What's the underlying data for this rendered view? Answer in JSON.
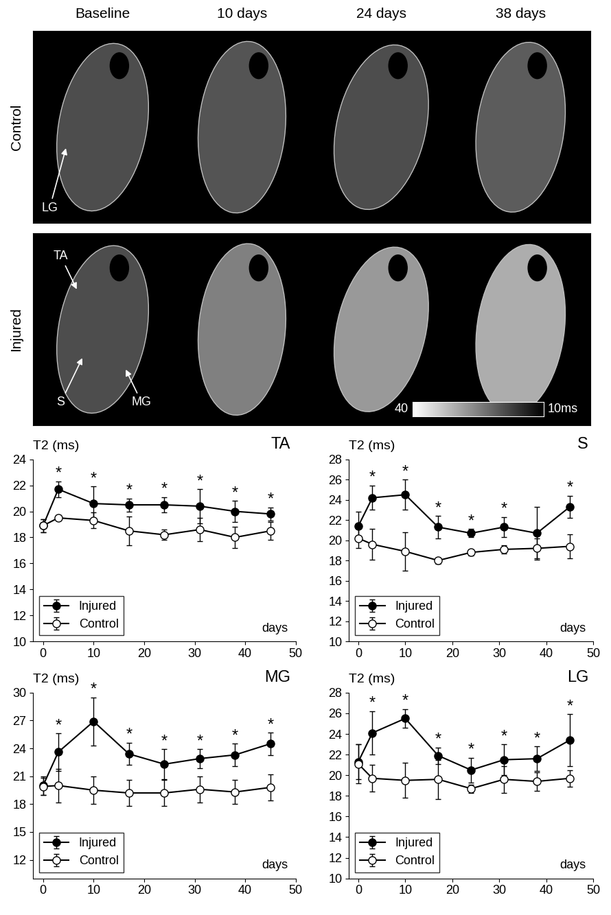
{
  "images": {
    "columns": [
      "Baseline",
      "10 days",
      "24 days",
      "38 days"
    ],
    "rows": [
      "Control",
      "Injured"
    ],
    "labels": {
      "Control": [
        "LG"
      ],
      "Injured": [
        "TA",
        "S",
        "MG"
      ]
    },
    "colorbar": {
      "lim": [
        40,
        10
      ],
      "ticks": [
        40,
        {
          "value": 10,
          "label": "10ms"
        }
      ]
    }
  },
  "chart_data": [
    {
      "type": "line",
      "title": "TA",
      "y_label": "T2 (ms)",
      "x_label": "days",
      "xlim": [
        -2,
        50
      ],
      "xticks": [
        0,
        10,
        20,
        30,
        40,
        50
      ],
      "ylim": [
        10,
        24
      ],
      "yticks": [
        10,
        12,
        14,
        16,
        18,
        20,
        22,
        24
      ],
      "legend": "lower left",
      "annotation": "*",
      "x": [
        0,
        3,
        10,
        17,
        24,
        31,
        38,
        45
      ],
      "series": [
        {
          "name": "Injured",
          "color": "#000000",
          "marker": "o",
          "values": [
            18.9,
            21.7,
            20.6,
            20.5,
            20.5,
            20.4,
            20.0,
            19.8
          ],
          "error": [
            0.5,
            0.6,
            1.3,
            0.5,
            0.6,
            1.3,
            0.8,
            0.5
          ],
          "significant": [
            false,
            true,
            true,
            true,
            true,
            true,
            true,
            true
          ]
        },
        {
          "name": "Control",
          "color": "#ffffff",
          "marker": "o",
          "values": [
            18.9,
            19.5,
            19.3,
            18.5,
            18.2,
            18.6,
            18.0,
            18.5
          ],
          "error": [
            0.5,
            0.2,
            0.6,
            1.1,
            0.4,
            0.9,
            0.8,
            0.7
          ]
        }
      ]
    },
    {
      "type": "line",
      "title": "S",
      "y_label": "T2 (ms)",
      "x_label": "days",
      "xlim": [
        -2,
        50
      ],
      "xticks": [
        0,
        10,
        20,
        30,
        40,
        50
      ],
      "ylim": [
        10,
        28
      ],
      "yticks": [
        10,
        12,
        14,
        16,
        18,
        20,
        22,
        24,
        26,
        28
      ],
      "legend": "lower left",
      "annotation": "*",
      "x": [
        0,
        3,
        10,
        17,
        24,
        31,
        38,
        45
      ],
      "series": [
        {
          "name": "Injured",
          "color": "#000000",
          "marker": "o",
          "values": [
            21.4,
            24.2,
            24.5,
            21.3,
            20.7,
            21.3,
            20.7,
            23.3
          ],
          "error": [
            1.4,
            1.2,
            1.5,
            1.1,
            0.4,
            1.0,
            2.6,
            1.1
          ],
          "significant": [
            false,
            true,
            true,
            true,
            true,
            true,
            false,
            true
          ]
        },
        {
          "name": "Control",
          "color": "#ffffff",
          "marker": "o",
          "values": [
            20.2,
            19.6,
            18.9,
            18.0,
            18.8,
            19.1,
            19.2,
            19.4
          ],
          "error": [
            1.0,
            1.5,
            1.9,
            0.3,
            0.3,
            0.4,
            1.0,
            1.2
          ]
        }
      ]
    },
    {
      "type": "line",
      "title": "MG",
      "y_label": "T2 (ms)",
      "x_label": "days",
      "xlim": [
        -2,
        50
      ],
      "xticks": [
        0,
        10,
        20,
        30,
        40,
        50
      ],
      "ylim": [
        10,
        30
      ],
      "yticks": [
        12,
        15,
        18,
        21,
        24,
        27,
        30
      ],
      "legend": "lower left",
      "annotation": "*",
      "x": [
        0,
        3,
        10,
        17,
        24,
        31,
        38,
        45
      ],
      "series": [
        {
          "name": "Injured",
          "color": "#000000",
          "marker": "o",
          "values": [
            20.0,
            23.6,
            26.9,
            23.4,
            22.3,
            22.9,
            23.3,
            24.5
          ],
          "error": [
            1.0,
            2.0,
            2.6,
            1.2,
            1.6,
            1.0,
            1.2,
            1.2
          ],
          "significant": [
            false,
            true,
            true,
            true,
            true,
            true,
            true,
            true
          ]
        },
        {
          "name": "Control",
          "color": "#ffffff",
          "marker": "o",
          "values": [
            19.9,
            20.0,
            19.5,
            19.2,
            19.2,
            19.6,
            19.3,
            19.8
          ],
          "error": [
            0.9,
            1.8,
            1.5,
            1.4,
            1.4,
            1.4,
            1.3,
            1.4
          ]
        }
      ]
    },
    {
      "type": "line",
      "title": "LG",
      "y_label": "T2 (ms)",
      "x_label": "days",
      "xlim": [
        -2,
        50
      ],
      "xticks": [
        0,
        10,
        20,
        30,
        40,
        50
      ],
      "ylim": [
        10,
        28
      ],
      "yticks": [
        10,
        12,
        14,
        16,
        18,
        20,
        22,
        24,
        26,
        28
      ],
      "legend": "lower left",
      "annotation": "*",
      "x": [
        0,
        3,
        10,
        17,
        24,
        31,
        38,
        45
      ],
      "series": [
        {
          "name": "Injured",
          "color": "#000000",
          "marker": "o",
          "values": [
            21.3,
            24.1,
            25.5,
            21.9,
            20.5,
            21.5,
            21.6,
            23.4
          ],
          "error": [
            1.7,
            2.1,
            0.9,
            0.8,
            1.2,
            1.5,
            1.2,
            2.5
          ],
          "significant": [
            false,
            true,
            true,
            true,
            true,
            true,
            true,
            true
          ]
        },
        {
          "name": "Control",
          "color": "#ffffff",
          "marker": "o",
          "values": [
            21.1,
            19.7,
            19.5,
            19.6,
            18.7,
            19.6,
            19.4,
            19.7
          ],
          "error": [
            1.9,
            1.3,
            1.7,
            1.9,
            0.4,
            1.3,
            0.9,
            0.8
          ]
        }
      ]
    }
  ]
}
